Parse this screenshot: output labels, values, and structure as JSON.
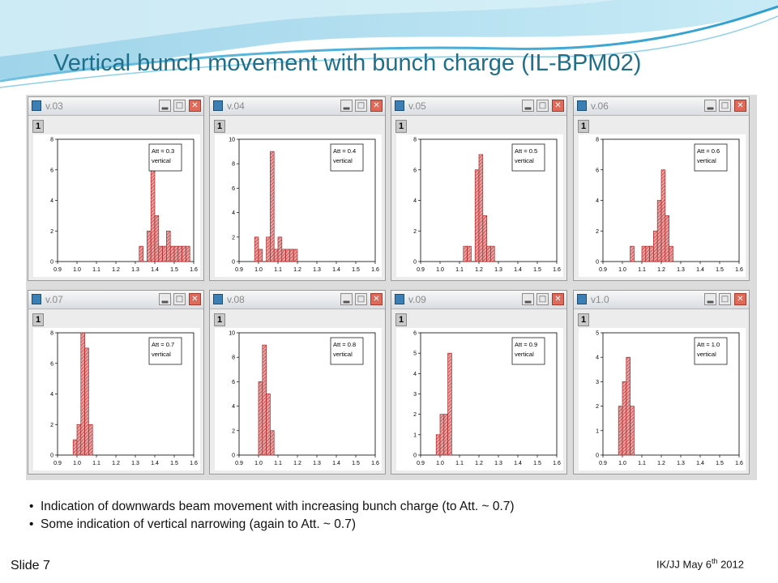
{
  "slide": {
    "title": "Vertical bunch movement with bunch charge (IL-BPM02)",
    "bullets": [
      "Indication of downwards beam movement with increasing bunch charge (to Att. ~ 0.7)",
      "Some indication of vertical narrowing (again to Att. ~ 0.7)"
    ],
    "slide_number": "Slide 7",
    "footer": {
      "prefix": "IK/JJ May 6",
      "sup": "th",
      "suffix": " 2012"
    }
  },
  "window_controls": {
    "minimize": "▂",
    "maximize": "□",
    "close": "✕",
    "layer_tag": "1"
  },
  "colors": {
    "bar_fill": "#e6a3a3",
    "bar_stroke": "#b02020",
    "title": "#1f6f8b",
    "close_button": "#e06a5a"
  },
  "chart_data": [
    {
      "type": "bar",
      "window_title": "v.03",
      "legend": [
        "Att = 0.3",
        "vertical"
      ],
      "xlim": [
        0.9,
        1.6
      ],
      "ylim": [
        0,
        8
      ],
      "yticks": [
        0,
        2,
        4,
        6,
        8
      ],
      "xticks": [
        0.9,
        1.0,
        1.1,
        1.2,
        1.3,
        1.4,
        1.5,
        1.6
      ],
      "bins": [
        [
          1.32,
          1
        ],
        [
          1.36,
          2
        ],
        [
          1.38,
          6
        ],
        [
          1.4,
          3
        ],
        [
          1.42,
          1
        ],
        [
          1.44,
          1
        ],
        [
          1.46,
          2
        ],
        [
          1.48,
          1
        ],
        [
          1.5,
          1
        ],
        [
          1.52,
          1
        ],
        [
          1.54,
          1
        ],
        [
          1.56,
          1
        ]
      ]
    },
    {
      "type": "bar",
      "window_title": "v.04",
      "legend": [
        "Att = 0.4",
        "vertical"
      ],
      "xlim": [
        0.9,
        1.6
      ],
      "ylim": [
        0,
        10
      ],
      "yticks": [
        0,
        2,
        4,
        6,
        8,
        10
      ],
      "xticks": [
        0.9,
        1.0,
        1.1,
        1.2,
        1.3,
        1.4,
        1.5,
        1.6
      ],
      "bins": [
        [
          0.98,
          2
        ],
        [
          1.0,
          1
        ],
        [
          1.04,
          2
        ],
        [
          1.06,
          9
        ],
        [
          1.08,
          1
        ],
        [
          1.1,
          2
        ],
        [
          1.12,
          1
        ],
        [
          1.14,
          1
        ],
        [
          1.16,
          1
        ],
        [
          1.18,
          1
        ]
      ]
    },
    {
      "type": "bar",
      "window_title": "v.05",
      "legend": [
        "Att = 0.5",
        "vertical"
      ],
      "xlim": [
        0.9,
        1.6
      ],
      "ylim": [
        0,
        8
      ],
      "yticks": [
        0,
        2,
        4,
        6,
        8
      ],
      "xticks": [
        0.9,
        1.0,
        1.1,
        1.2,
        1.3,
        1.4,
        1.5,
        1.6
      ],
      "bins": [
        [
          1.12,
          1
        ],
        [
          1.14,
          1
        ],
        [
          1.18,
          6
        ],
        [
          1.2,
          7
        ],
        [
          1.22,
          3
        ],
        [
          1.24,
          1
        ],
        [
          1.26,
          1
        ]
      ]
    },
    {
      "type": "bar",
      "window_title": "v.06",
      "legend": [
        "Att = 0.6",
        "vertical"
      ],
      "xlim": [
        0.9,
        1.6
      ],
      "ylim": [
        0,
        8
      ],
      "yticks": [
        0,
        2,
        4,
        6,
        8
      ],
      "xticks": [
        0.9,
        1.0,
        1.1,
        1.2,
        1.3,
        1.4,
        1.5,
        1.6
      ],
      "bins": [
        [
          1.04,
          1
        ],
        [
          1.1,
          1
        ],
        [
          1.12,
          1
        ],
        [
          1.14,
          1
        ],
        [
          1.16,
          2
        ],
        [
          1.18,
          4
        ],
        [
          1.2,
          6
        ],
        [
          1.22,
          3
        ],
        [
          1.24,
          1
        ]
      ]
    },
    {
      "type": "bar",
      "window_title": "v.07",
      "legend": [
        "Att = 0.7",
        "vertical"
      ],
      "xlim": [
        0.9,
        1.6
      ],
      "ylim": [
        0,
        8
      ],
      "yticks": [
        0,
        2,
        4,
        6,
        8
      ],
      "xticks": [
        0.9,
        1.0,
        1.1,
        1.2,
        1.3,
        1.4,
        1.5,
        1.6
      ],
      "bins": [
        [
          0.98,
          1
        ],
        [
          1.0,
          2
        ],
        [
          1.02,
          8
        ],
        [
          1.04,
          7
        ],
        [
          1.06,
          2
        ]
      ]
    },
    {
      "type": "bar",
      "window_title": "v.08",
      "legend": [
        "Att = 0.8",
        "vertical"
      ],
      "xlim": [
        0.9,
        1.6
      ],
      "ylim": [
        0,
        10
      ],
      "yticks": [
        0,
        2,
        4,
        6,
        8,
        10
      ],
      "xticks": [
        0.9,
        1.0,
        1.1,
        1.2,
        1.3,
        1.4,
        1.5,
        1.6
      ],
      "bins": [
        [
          1.0,
          6
        ],
        [
          1.02,
          9
        ],
        [
          1.04,
          5
        ],
        [
          1.06,
          2
        ]
      ]
    },
    {
      "type": "bar",
      "window_title": "v.09",
      "legend": [
        "Att = 0.9",
        "vertical"
      ],
      "xlim": [
        0.9,
        1.6
      ],
      "ylim": [
        0,
        6
      ],
      "yticks": [
        0,
        1,
        2,
        3,
        4,
        5,
        6
      ],
      "xticks": [
        0.9,
        1.0,
        1.1,
        1.2,
        1.3,
        1.4,
        1.5,
        1.6
      ],
      "bins": [
        [
          0.98,
          1
        ],
        [
          1.0,
          2
        ],
        [
          1.02,
          2
        ],
        [
          1.04,
          5
        ]
      ]
    },
    {
      "type": "bar",
      "window_title": "v1.0",
      "legend": [
        "Att = 1.0",
        "vertical"
      ],
      "xlim": [
        0.9,
        1.6
      ],
      "ylim": [
        0,
        5
      ],
      "yticks": [
        0,
        1,
        2,
        3,
        4,
        5
      ],
      "xticks": [
        0.9,
        1.0,
        1.1,
        1.2,
        1.3,
        1.4,
        1.5,
        1.6
      ],
      "bins": [
        [
          0.98,
          2
        ],
        [
          1.0,
          3
        ],
        [
          1.02,
          4
        ],
        [
          1.04,
          2
        ]
      ]
    }
  ]
}
